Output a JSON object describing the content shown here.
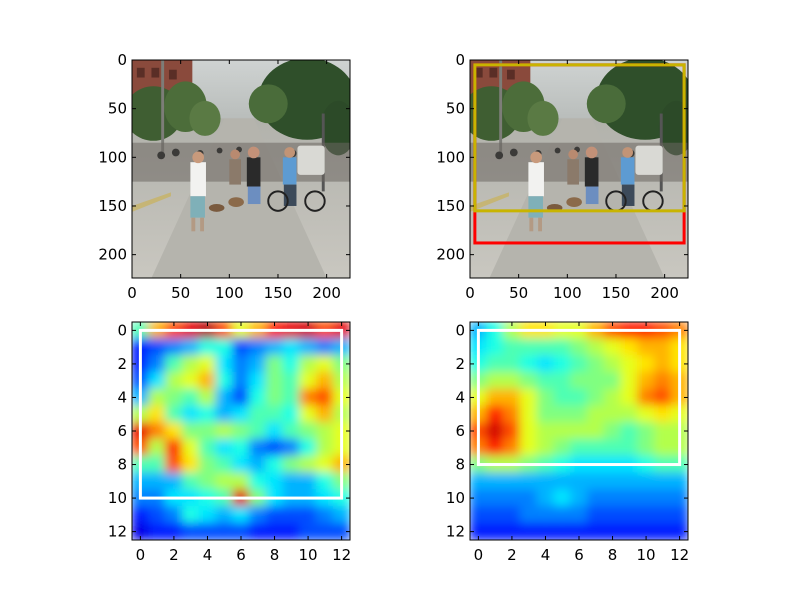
{
  "chart_data": [
    {
      "type": "image",
      "image": "street-scene-photo",
      "xlim": [
        0,
        224
      ],
      "ylim": [
        224,
        0
      ],
      "xticks": [
        0,
        50,
        100,
        150,
        200
      ],
      "yticks": [
        0,
        50,
        100,
        150,
        200
      ],
      "boxes": []
    },
    {
      "type": "image",
      "image": "street-scene-photo",
      "xlim": [
        0,
        224
      ],
      "ylim": [
        224,
        0
      ],
      "xticks": [
        0,
        50,
        100,
        150,
        200
      ],
      "yticks": [
        0,
        50,
        100,
        150,
        200
      ],
      "boxes": [
        {
          "color": "#ff0000",
          "x0": 5,
          "y0": 5,
          "x1": 220,
          "y1": 188
        },
        {
          "color": "#c8b400",
          "x0": 5,
          "y0": 5,
          "x1": 220,
          "y1": 155
        }
      ]
    },
    {
      "type": "heatmap",
      "colormap": "jet",
      "xlim": [
        -0.5,
        12.5
      ],
      "ylim": [
        12.5,
        -0.5
      ],
      "xticks": [
        0,
        2,
        4,
        6,
        8,
        10,
        12
      ],
      "yticks": [
        0,
        2,
        4,
        6,
        8,
        10,
        12
      ],
      "values": [
        [
          0.45,
          0.7,
          0.8,
          0.9,
          0.95,
          0.8,
          0.6,
          0.7,
          0.85,
          0.9,
          0.92,
          0.8,
          0.9
        ],
        [
          0.15,
          0.2,
          0.25,
          0.3,
          0.4,
          0.4,
          0.2,
          0.25,
          0.3,
          0.35,
          0.3,
          0.25,
          0.3
        ],
        [
          0.15,
          0.25,
          0.45,
          0.55,
          0.6,
          0.35,
          0.25,
          0.3,
          0.5,
          0.4,
          0.55,
          0.6,
          0.5
        ],
        [
          0.2,
          0.35,
          0.55,
          0.6,
          0.7,
          0.4,
          0.25,
          0.35,
          0.5,
          0.45,
          0.6,
          0.7,
          0.55
        ],
        [
          0.3,
          0.55,
          0.5,
          0.45,
          0.55,
          0.3,
          0.2,
          0.4,
          0.5,
          0.45,
          0.75,
          0.8,
          0.6
        ],
        [
          0.55,
          0.65,
          0.45,
          0.35,
          0.4,
          0.3,
          0.35,
          0.45,
          0.45,
          0.4,
          0.6,
          0.7,
          0.55
        ],
        [
          0.9,
          0.75,
          0.65,
          0.5,
          0.5,
          0.55,
          0.5,
          0.45,
          0.35,
          0.45,
          0.5,
          0.55,
          0.6
        ],
        [
          0.8,
          0.55,
          0.85,
          0.6,
          0.45,
          0.35,
          0.4,
          0.25,
          0.2,
          0.25,
          0.4,
          0.55,
          0.6
        ],
        [
          0.45,
          0.45,
          0.8,
          0.65,
          0.5,
          0.45,
          0.35,
          0.3,
          0.4,
          0.5,
          0.55,
          0.6,
          0.7
        ],
        [
          0.3,
          0.3,
          0.3,
          0.45,
          0.5,
          0.55,
          0.55,
          0.4,
          0.35,
          0.3,
          0.3,
          0.4,
          0.5
        ],
        [
          0.25,
          0.25,
          0.35,
          0.35,
          0.4,
          0.45,
          0.9,
          0.5,
          0.35,
          0.3,
          0.3,
          0.35,
          0.4
        ],
        [
          0.15,
          0.2,
          0.25,
          0.4,
          0.35,
          0.3,
          0.35,
          0.25,
          0.2,
          0.2,
          0.2,
          0.25,
          0.3
        ],
        [
          0.1,
          0.15,
          0.15,
          0.2,
          0.2,
          0.2,
          0.2,
          0.15,
          0.15,
          0.15,
          0.2,
          0.2,
          0.2
        ]
      ],
      "boxes": [
        {
          "color": "#ffffff",
          "x0": 0,
          "y0": 0,
          "x1": 12,
          "y1": 10
        }
      ]
    },
    {
      "type": "heatmap",
      "colormap": "jet",
      "xlim": [
        -0.5,
        12.5
      ],
      "ylim": [
        12.5,
        -0.5
      ],
      "xticks": [
        0,
        2,
        4,
        6,
        8,
        10,
        12
      ],
      "yticks": [
        0,
        2,
        4,
        6,
        8,
        10,
        12
      ],
      "values": [
        [
          0.3,
          0.4,
          0.55,
          0.65,
          0.65,
          0.6,
          0.6,
          0.7,
          0.8,
          0.85,
          0.85,
          0.8,
          0.75
        ],
        [
          0.35,
          0.4,
          0.45,
          0.45,
          0.45,
          0.45,
          0.5,
          0.55,
          0.6,
          0.65,
          0.7,
          0.7,
          0.65
        ],
        [
          0.4,
          0.45,
          0.45,
          0.4,
          0.35,
          0.4,
          0.45,
          0.5,
          0.55,
          0.6,
          0.65,
          0.7,
          0.65
        ],
        [
          0.5,
          0.55,
          0.55,
          0.5,
          0.45,
          0.45,
          0.5,
          0.5,
          0.5,
          0.6,
          0.7,
          0.75,
          0.7
        ],
        [
          0.6,
          0.7,
          0.7,
          0.6,
          0.5,
          0.45,
          0.45,
          0.5,
          0.55,
          0.6,
          0.75,
          0.8,
          0.7
        ],
        [
          0.7,
          0.85,
          0.75,
          0.6,
          0.5,
          0.5,
          0.5,
          0.55,
          0.55,
          0.55,
          0.6,
          0.65,
          0.6
        ],
        [
          0.8,
          0.92,
          0.8,
          0.6,
          0.55,
          0.55,
          0.55,
          0.55,
          0.5,
          0.45,
          0.5,
          0.55,
          0.55
        ],
        [
          0.75,
          0.85,
          0.75,
          0.6,
          0.55,
          0.5,
          0.45,
          0.45,
          0.45,
          0.45,
          0.5,
          0.55,
          0.55
        ],
        [
          0.5,
          0.55,
          0.55,
          0.5,
          0.45,
          0.4,
          0.35,
          0.35,
          0.35,
          0.35,
          0.4,
          0.45,
          0.45
        ],
        [
          0.3,
          0.3,
          0.3,
          0.3,
          0.3,
          0.3,
          0.3,
          0.3,
          0.3,
          0.3,
          0.3,
          0.3,
          0.3
        ],
        [
          0.25,
          0.25,
          0.25,
          0.25,
          0.3,
          0.35,
          0.3,
          0.25,
          0.25,
          0.25,
          0.25,
          0.25,
          0.25
        ],
        [
          0.2,
          0.2,
          0.2,
          0.25,
          0.25,
          0.25,
          0.25,
          0.2,
          0.2,
          0.2,
          0.2,
          0.2,
          0.2
        ],
        [
          0.15,
          0.15,
          0.15,
          0.15,
          0.15,
          0.15,
          0.15,
          0.15,
          0.15,
          0.15,
          0.15,
          0.15,
          0.15
        ]
      ],
      "boxes": [
        {
          "color": "#ffffff",
          "x0": 0,
          "y0": 0,
          "x1": 12,
          "y1": 8
        }
      ]
    }
  ]
}
